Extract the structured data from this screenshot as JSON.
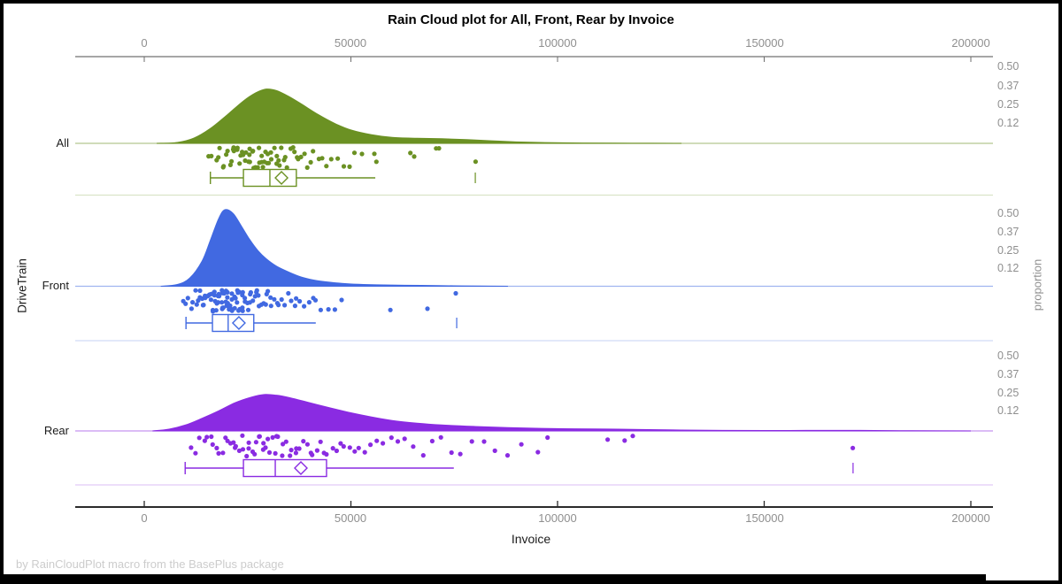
{
  "footer": "by RainCloudPlot macro from the BasePlus package",
  "chart_data": {
    "type": "raincloud",
    "title": "Rain Cloud plot for All, Front, Rear by Invoice",
    "x_axis": {
      "label": "Invoice",
      "ticks": [
        0,
        50000,
        100000,
        150000,
        200000
      ],
      "tick_labels": [
        "0",
        "50000",
        "100000",
        "150000",
        "200000"
      ],
      "range": [
        -17000,
        205000
      ]
    },
    "y_axis": {
      "label": "DriveTrain",
      "categories": [
        "All",
        "Front",
        "Rear"
      ]
    },
    "right_axis": {
      "label": "proportion",
      "tick_labels": [
        "0.50",
        "0.37",
        "0.25",
        "0.12"
      ],
      "tick_values": [
        0.5,
        0.37,
        0.25,
        0.12
      ]
    },
    "legend": "none",
    "grid": "off",
    "panels": [
      {
        "label": "All",
        "color": "#6B9123",
        "density": [
          [
            3000,
            0
          ],
          [
            8000,
            0.006
          ],
          [
            12000,
            0.035
          ],
          [
            16000,
            0.1
          ],
          [
            20000,
            0.19
          ],
          [
            24000,
            0.285
          ],
          [
            27000,
            0.34
          ],
          [
            29500,
            0.365
          ],
          [
            32000,
            0.355
          ],
          [
            35000,
            0.315
          ],
          [
            38000,
            0.265
          ],
          [
            42000,
            0.195
          ],
          [
            46000,
            0.135
          ],
          [
            50000,
            0.09
          ],
          [
            55000,
            0.058
          ],
          [
            60000,
            0.04
          ],
          [
            66000,
            0.034
          ],
          [
            72000,
            0.031
          ],
          [
            78000,
            0.025
          ],
          [
            84000,
            0.017
          ],
          [
            90000,
            0.01
          ],
          [
            97000,
            0.005
          ],
          [
            106000,
            0.002
          ],
          [
            118000,
            0.001
          ],
          [
            130000,
            0
          ]
        ],
        "rain": [
          15800,
          16500,
          17200,
          17800,
          18300,
          18900,
          19400,
          19800,
          20200,
          20600,
          21000,
          21300,
          21700,
          22000,
          22400,
          22700,
          23100,
          23400,
          23700,
          24000,
          24300,
          24600,
          24900,
          25200,
          25500,
          25800,
          26100,
          26400,
          26700,
          27000,
          27300,
          27600,
          27900,
          28200,
          28500,
          28800,
          29100,
          29400,
          29700,
          30000,
          30300,
          30600,
          31000,
          31400,
          31800,
          32200,
          32600,
          33000,
          33400,
          33800,
          34300,
          34800,
          35300,
          35800,
          36300,
          36900,
          37500,
          38100,
          38800,
          39500,
          40300,
          41100,
          42000,
          43000,
          44000,
          45200,
          46500,
          48000,
          49500,
          51000,
          52500,
          55900,
          56200,
          64200,
          65300,
          70400,
          71500,
          80100
        ],
        "box": {
          "min": 16000,
          "q1": 24000,
          "median": 30400,
          "mean": 33200,
          "q3": 36800,
          "max": 55900,
          "outliers": [
            80100
          ]
        }
      },
      {
        "label": "Front",
        "color": "#4169E1",
        "density": [
          [
            4000,
            0
          ],
          [
            8000,
            0.012
          ],
          [
            11000,
            0.055
          ],
          [
            14000,
            0.17
          ],
          [
            16000,
            0.31
          ],
          [
            18000,
            0.455
          ],
          [
            19500,
            0.515
          ],
          [
            21500,
            0.49
          ],
          [
            23500,
            0.405
          ],
          [
            25500,
            0.315
          ],
          [
            27500,
            0.24
          ],
          [
            29500,
            0.185
          ],
          [
            32000,
            0.135
          ],
          [
            35000,
            0.095
          ],
          [
            38000,
            0.062
          ],
          [
            41000,
            0.042
          ],
          [
            45000,
            0.027
          ],
          [
            49000,
            0.017
          ],
          [
            53000,
            0.012
          ],
          [
            58000,
            0.009
          ],
          [
            63000,
            0.007
          ],
          [
            69000,
            0.005
          ],
          [
            75000,
            0.003
          ],
          [
            81000,
            0.0015
          ],
          [
            88000,
            0
          ]
        ],
        "rain": [
          9500,
          10200,
          10800,
          11300,
          11800,
          12200,
          12600,
          13000,
          13300,
          13600,
          13900,
          14200,
          14500,
          14700,
          15000,
          15200,
          15500,
          15700,
          15900,
          16100,
          16300,
          16500,
          16700,
          16900,
          17100,
          17300,
          17500,
          17700,
          17900,
          18000,
          18200,
          18400,
          18500,
          18700,
          18900,
          19000,
          19200,
          19300,
          19500,
          19600,
          19800,
          19900,
          20100,
          20200,
          20400,
          20500,
          20700,
          20800,
          21000,
          21200,
          21300,
          21500,
          21700,
          21900,
          22100,
          22300,
          22500,
          22700,
          22900,
          23100,
          23300,
          23500,
          23700,
          23900,
          24100,
          24400,
          24600,
          24900,
          25100,
          25400,
          25700,
          26000,
          26300,
          26600,
          26900,
          27200,
          27500,
          27900,
          28300,
          28700,
          29100,
          29500,
          30000,
          30500,
          31000,
          31500,
          32100,
          32700,
          33300,
          34000,
          34700,
          35400,
          36200,
          37000,
          37900,
          38800,
          39800,
          40800,
          41500,
          43000,
          44500,
          46000,
          48000,
          59500,
          68500,
          75600
        ],
        "box": {
          "min": 10100,
          "q1": 16500,
          "median": 20300,
          "mean": 22900,
          "q3": 26500,
          "max": 41500,
          "outliers": [
            75600
          ]
        }
      },
      {
        "label": "Rear",
        "color": "#8A2BE2",
        "density": [
          [
            2000,
            0
          ],
          [
            6000,
            0.012
          ],
          [
            10000,
            0.04
          ],
          [
            14000,
            0.085
          ],
          [
            18000,
            0.135
          ],
          [
            22000,
            0.19
          ],
          [
            26000,
            0.228
          ],
          [
            29000,
            0.245
          ],
          [
            32000,
            0.24
          ],
          [
            35000,
            0.225
          ],
          [
            40000,
            0.19
          ],
          [
            45000,
            0.155
          ],
          [
            50000,
            0.122
          ],
          [
            55000,
            0.094
          ],
          [
            60000,
            0.07
          ],
          [
            66000,
            0.052
          ],
          [
            72000,
            0.04
          ],
          [
            80000,
            0.03
          ],
          [
            88000,
            0.022
          ],
          [
            96000,
            0.017
          ],
          [
            104000,
            0.014
          ],
          [
            112000,
            0.013
          ],
          [
            120000,
            0.01
          ],
          [
            130000,
            0.006
          ],
          [
            140000,
            0.004
          ],
          [
            150000,
            0.003
          ],
          [
            160000,
            0.0035
          ],
          [
            170000,
            0.004
          ],
          [
            180000,
            0.002
          ],
          [
            192000,
            0.0005
          ],
          [
            200000,
            0
          ]
        ],
        "rain": [
          11200,
          12500,
          13500,
          14500,
          15300,
          16000,
          16800,
          17500,
          18200,
          18900,
          19500,
          20100,
          20700,
          21300,
          21900,
          22400,
          23000,
          23500,
          24000,
          24500,
          25000,
          25500,
          26000,
          26500,
          27000,
          27500,
          28000,
          28500,
          29000,
          29500,
          30000,
          30500,
          31000,
          31500,
          32000,
          32600,
          33200,
          33800,
          34400,
          35000,
          35700,
          36400,
          37100,
          37800,
          38500,
          39300,
          40100,
          40900,
          41700,
          42600,
          43500,
          44400,
          45400,
          46400,
          47400,
          48500,
          49600,
          50800,
          52000,
          53300,
          54700,
          56200,
          57800,
          59500,
          61300,
          63200,
          65200,
          67300,
          69500,
          71800,
          74200,
          76700,
          79300,
          82000,
          85000,
          88000,
          91500,
          95000,
          97800,
          112000,
          116500,
          118200,
          171500
        ],
        "box": {
          "min": 9900,
          "q1": 24000,
          "median": 31700,
          "mean": 37900,
          "q3": 44100,
          "max": 74900,
          "outliers": [
            171500
          ]
        }
      }
    ]
  }
}
